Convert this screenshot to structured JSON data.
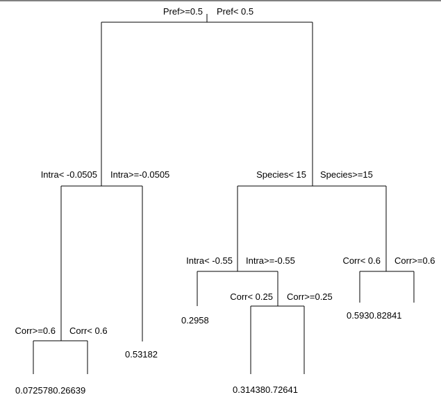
{
  "diagram": {
    "type": "regression-tree",
    "colors": {
      "line": "#000000",
      "text": "#000000",
      "background": "#ffffff"
    },
    "splits": {
      "root": {
        "left": "Pref>=0.5",
        "right": "Pref< 0.5"
      },
      "n2": {
        "left": "Intra< -0.0505",
        "right": "Intra>=-0.0505"
      },
      "n3": {
        "left": "Species< 15",
        "right": "Species>=15"
      },
      "n4": {
        "left": "Corr>=0.6",
        "right": "Corr< 0.6"
      },
      "n6": {
        "left": "Intra< -0.55",
        "right": "Intra>=-0.55"
      },
      "n7": {
        "left": "Corr< 0.6",
        "right": "Corr>=0.6"
      },
      "n13": {
        "left": "Corr< 0.25",
        "right": "Corr>=0.25"
      }
    },
    "leaves": {
      "n4_pair": "0.0725780.26639",
      "n5": "0.53182",
      "n12": "0.2958",
      "n13_pair": "0.314380.72641",
      "n7_pair": "0.5930.82841"
    }
  }
}
